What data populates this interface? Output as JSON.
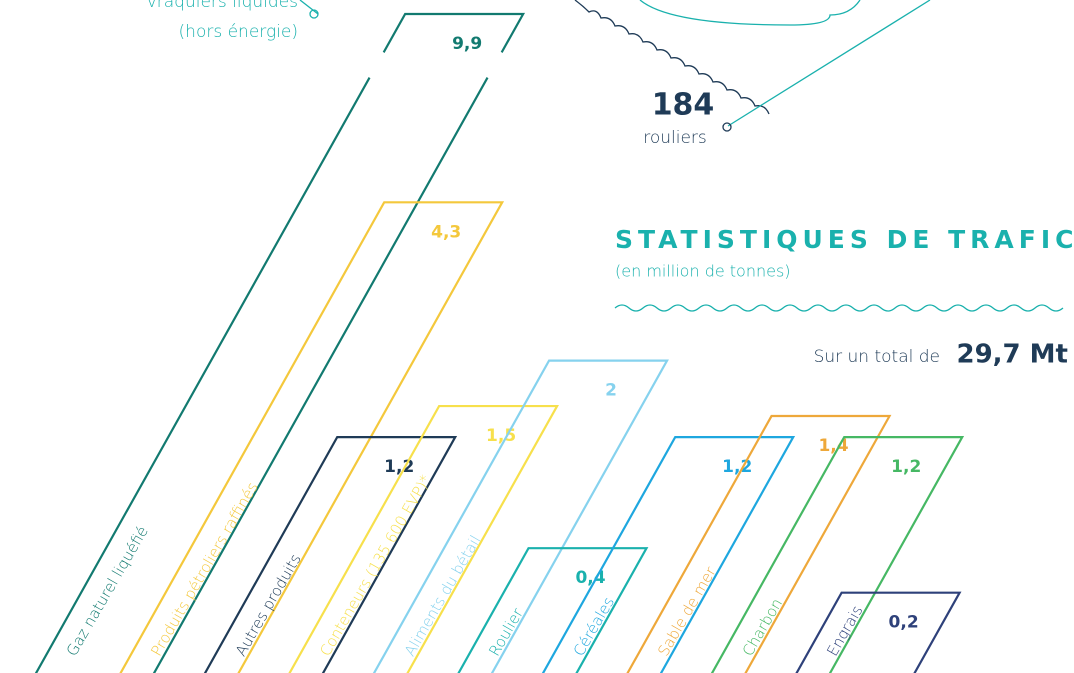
{
  "chart_data": {
    "type": "bar",
    "title": "STATISTIQUES DE TRAFIC",
    "subtitle": "(en million de tonnes)",
    "total_prefix": "Sur un total de",
    "total": "29,7 Mt",
    "annotations": {
      "vraquiers_line1": "vraquiers liquides",
      "vraquiers_line2": "(hors énergie)",
      "rouliers_count": "184",
      "rouliers_label": "rouliers"
    },
    "categories": [
      "Gaz naturel liquéfié",
      "Produits pétroliers raffinés",
      "Autres produits",
      "Conteneurs (135 600 EVP)*",
      "Aliments du bétail",
      "Roulier",
      "Céréales",
      "Sable de mer",
      "Charbon",
      "Engrais"
    ],
    "values": [
      9.9,
      4.3,
      1.2,
      1.5,
      2,
      0.4,
      1.2,
      1.4,
      1.2,
      0.2
    ],
    "value_labels": [
      "9,9",
      "4,3",
      "1,2",
      "1,5",
      "2",
      "0,4",
      "1,2",
      "1,4",
      "1,2",
      "0,2"
    ],
    "colors": [
      "#127a70",
      "#f4c83c",
      "#1f3b57",
      "#f7e04c",
      "#86d2ee",
      "#1ab1ad",
      "#1ea7df",
      "#eea83a",
      "#46b864",
      "#2e417a"
    ]
  }
}
